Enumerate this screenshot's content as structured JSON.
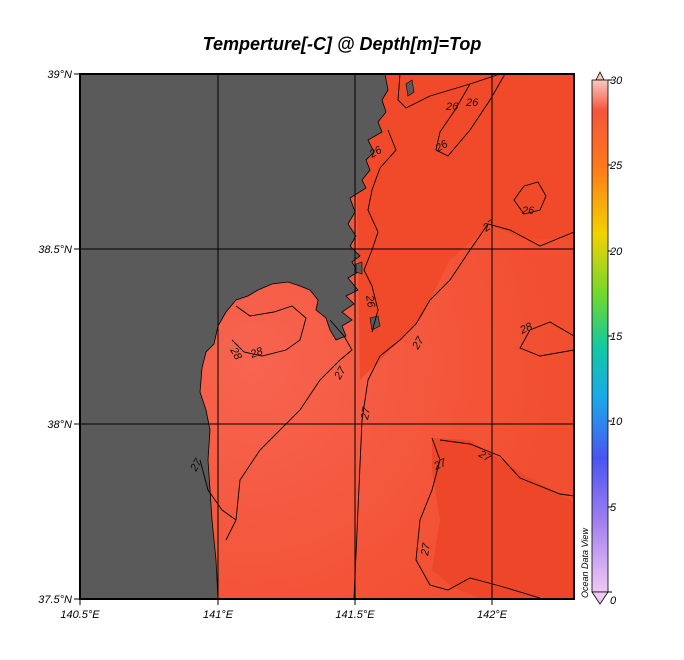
{
  "title": "Temperture[-C] @ Depth[m]=Top",
  "lat_labels": [
    "39°N",
    "38.5°N",
    "38°N",
    "37.5°N"
  ],
  "lon_labels": [
    "140.5°E",
    "141°E",
    "141.5°E",
    "142°E"
  ],
  "colorbar": {
    "ticks": [
      "30",
      "25",
      "20",
      "15",
      "10",
      "5",
      "0"
    ],
    "min": 0,
    "max": 30
  },
  "watermark": "Ocean Data View",
  "contour_labels": [
    "26",
    "26",
    "26",
    "26",
    "26",
    "26",
    "27",
    "27",
    "27",
    "27",
    "27",
    "27",
    "27",
    "28",
    "28",
    "28",
    "27"
  ],
  "colors": {
    "land": "#5a5a5a",
    "sea_warm": "#f55a3c",
    "sea_cool": "#f04a2a"
  }
}
